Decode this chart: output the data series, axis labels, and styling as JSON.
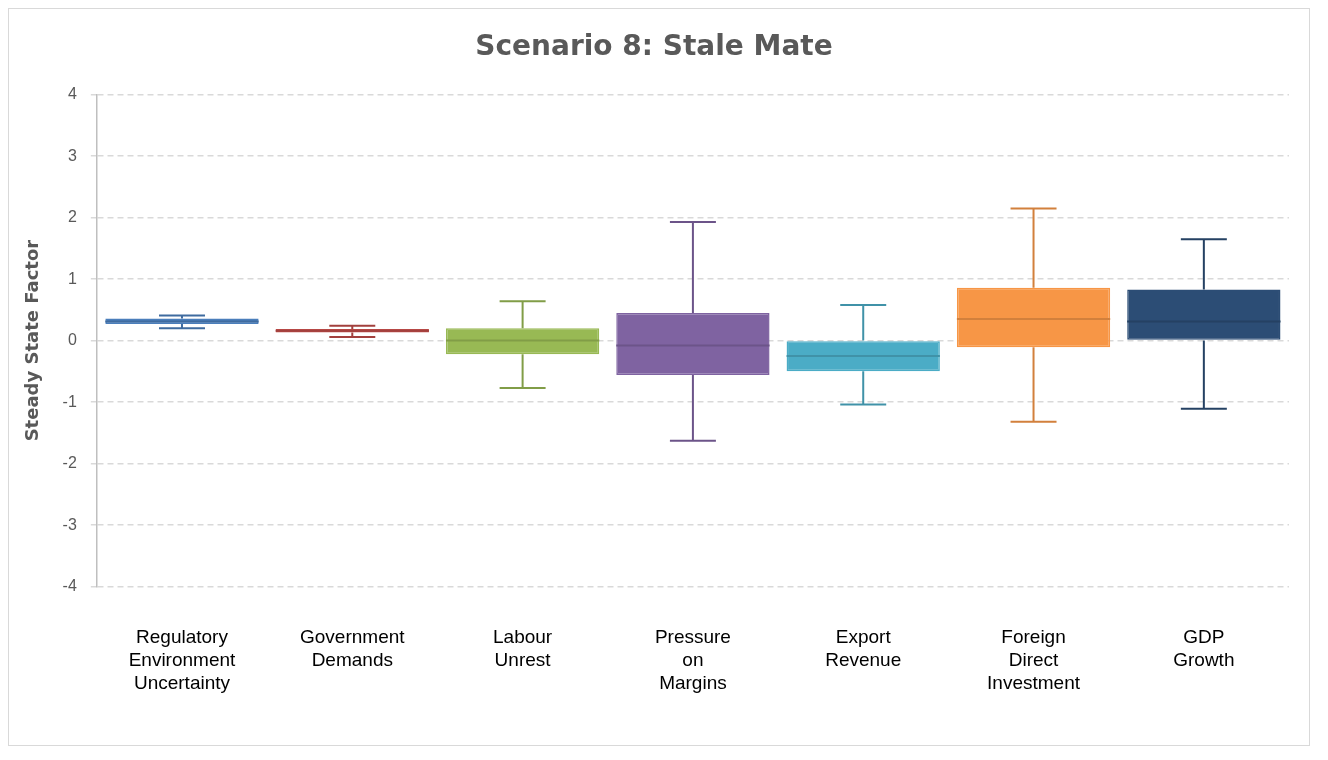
{
  "chart_data": {
    "type": "box",
    "title": "Scenario 8: Stale Mate",
    "ylabel": "Steady State Factor",
    "categories": [
      "Regulatory Environment Uncertainty",
      "Government Demands",
      "Labour Unrest",
      "Pressure on Margins",
      "Export Revenue",
      "Foreign Direct Investment",
      "GDP Growth"
    ],
    "boxes": [
      {
        "low": 0.2,
        "q1": 0.27,
        "median": 0.31,
        "q3": 0.36,
        "high": 0.41
      },
      {
        "low": 0.06,
        "q1": 0.13,
        "median": 0.16,
        "q3": 0.19,
        "high": 0.24
      },
      {
        "low": -0.77,
        "q1": -0.22,
        "median": 0,
        "q3": 0.2,
        "high": 0.64
      },
      {
        "low": -1.63,
        "q1": -0.56,
        "median": -0.08,
        "q3": 0.45,
        "high": 1.93
      },
      {
        "low": -1.04,
        "q1": -0.5,
        "median": -0.25,
        "q3": 0,
        "high": 0.58
      },
      {
        "low": -1.32,
        "q1": -0.11,
        "median": 0.35,
        "q3": 0.86,
        "high": 2.15
      },
      {
        "low": -1.11,
        "q1": 0,
        "median": 0.31,
        "q3": 0.83,
        "high": 1.65
      }
    ],
    "colors": [
      "#4a7ebb",
      "#be4b48",
      "#98b954",
      "#7f63a1",
      "#4bacc6",
      "#f79646",
      "#2c4d75"
    ],
    "ylim": [
      -4,
      4
    ],
    "yticks": [
      -4,
      -3,
      -2,
      -1,
      0,
      1,
      2,
      3,
      4
    ],
    "grid": "y",
    "legend": false
  }
}
